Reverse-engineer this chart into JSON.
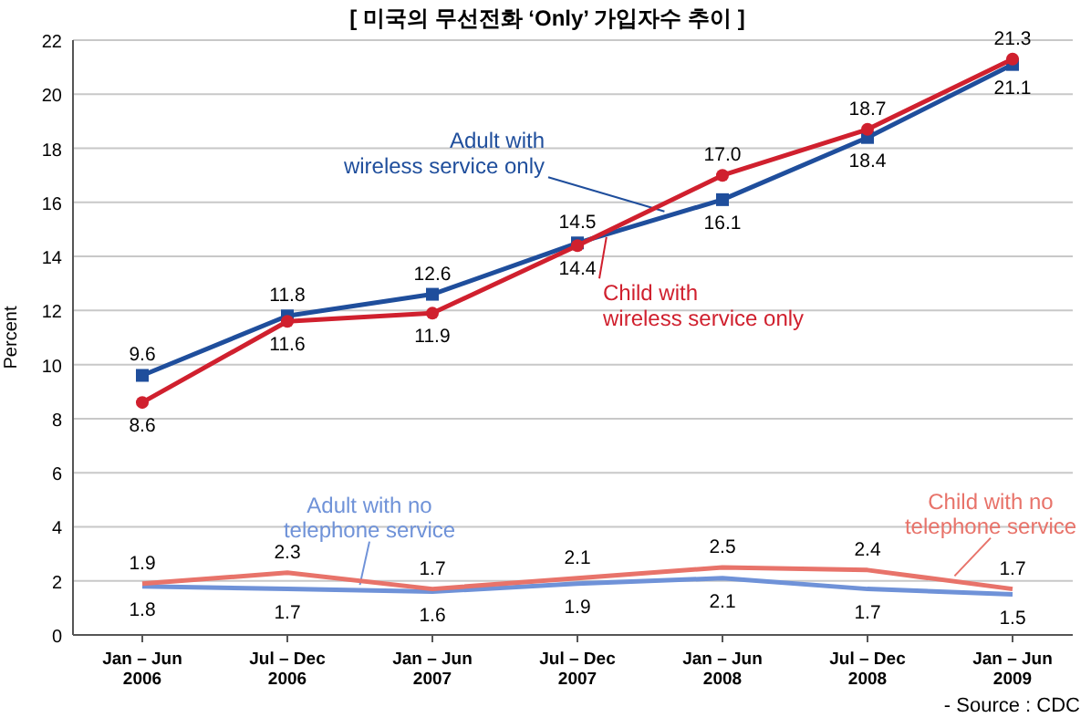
{
  "chart_data": {
    "type": "line",
    "title": "[ 미국의 무선전화 ‘Only’ 가입자수 추이 ]",
    "ylabel": "Percent",
    "categories": [
      "Jan – Jun\n2006",
      "Jul – Dec\n2006",
      "Jan – Jun\n2007",
      "Jul – Dec\n2007",
      "Jan – Jun\n2008",
      "Jul – Dec\n2008",
      "Jan – Jun\n2009"
    ],
    "series": [
      {
        "name": "Adult with\nwireless service only",
        "color": "#1f4e9c",
        "marker": "square",
        "values": [
          9.6,
          11.8,
          12.6,
          14.5,
          16.1,
          18.4,
          21.1
        ],
        "value_labels": [
          "9.6",
          "11.8",
          "12.6",
          "14.5",
          "16.1",
          "18.4",
          "21.1"
        ]
      },
      {
        "name": "Child with\nwireless service only",
        "color": "#d0202e",
        "marker": "circle",
        "values": [
          8.6,
          11.6,
          11.9,
          14.4,
          17.0,
          18.7,
          21.3
        ],
        "value_labels": [
          "8.6",
          "11.6",
          "11.9",
          "14.4",
          "17.0",
          "18.7",
          "21.3"
        ]
      },
      {
        "name": "Adult with no\ntelephone service",
        "color": "#6f92d8",
        "marker": "none",
        "values": [
          1.8,
          1.7,
          1.6,
          1.9,
          2.1,
          1.7,
          1.5
        ],
        "value_labels": [
          "1.8",
          "1.7",
          "1.6",
          "1.9",
          "2.1",
          "1.7",
          "1.5"
        ]
      },
      {
        "name": "Child with no\ntelephone service",
        "color": "#e8736a",
        "marker": "none",
        "values": [
          1.9,
          2.3,
          1.7,
          2.1,
          2.5,
          2.4,
          1.7
        ],
        "value_labels": [
          "1.9",
          "2.3",
          "1.7",
          "2.1",
          "2.5",
          "2.4",
          "1.7"
        ]
      }
    ],
    "ylim": [
      0,
      22
    ],
    "yticks": [
      0,
      2,
      4,
      6,
      8,
      10,
      12,
      14,
      16,
      18,
      20,
      22
    ],
    "grid": "y",
    "line_style": "solid",
    "annotations": [
      "- Source : CDC"
    ]
  }
}
